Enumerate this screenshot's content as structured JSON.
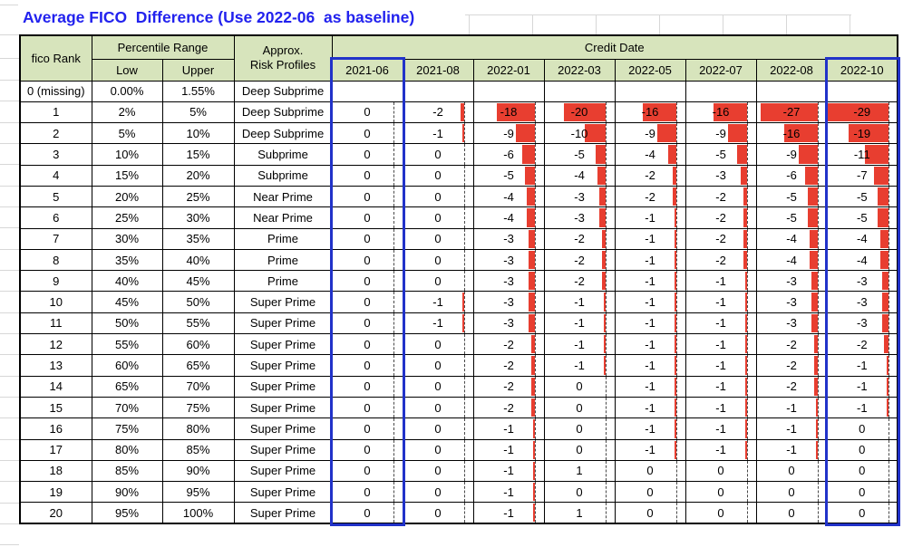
{
  "title": "Average FICO  Difference (Use 2022-06  as baseline)",
  "colors": {
    "title_blue": "#2222EE",
    "header_green": "#D7E4BC",
    "bar_red": "#E83E30",
    "highlight_blue": "#2132C9",
    "gridline_gray": "#D7D7D7",
    "cell_border": "#000000"
  },
  "chart_data": {
    "type": "table",
    "title": "Average FICO  Difference (Use 2022-06  as baseline)",
    "baseline_column": "2022-06",
    "header": {
      "rank": "fico Rank",
      "percentile_group": "Percentile Range",
      "low": "Low",
      "upper": "Upper",
      "risk_line1": "Approx.",
      "risk_line2": "Risk Profiles",
      "credit_date_group": "Credit Date",
      "date_columns": [
        "2021-06",
        "2021-08",
        "2022-01",
        "2022-03",
        "2022-05",
        "2022-07",
        "2022-08",
        "2022-10"
      ]
    },
    "highlighted_date_columns": [
      "2021-06",
      "2022-10"
    ],
    "databar": {
      "color": "#E83E30",
      "scale_min": -29,
      "scale_max": 1,
      "axis_position_pct": 88,
      "bars_for_negative_only": true
    },
    "rows": [
      {
        "rank": "0 (missing)",
        "low": "0.00%",
        "upper": "1.55%",
        "risk": "Deep Subprime",
        "values": [
          null,
          null,
          null,
          null,
          null,
          null,
          null,
          null
        ]
      },
      {
        "rank": "1",
        "low": "2%",
        "upper": "5%",
        "risk": "Deep Subprime",
        "values": [
          0,
          -2,
          -18,
          -20,
          -16,
          -16,
          -27,
          -29
        ]
      },
      {
        "rank": "2",
        "low": "5%",
        "upper": "10%",
        "risk": "Deep Subprime",
        "values": [
          0,
          -1,
          -9,
          -10,
          -9,
          -9,
          -16,
          -19
        ]
      },
      {
        "rank": "3",
        "low": "10%",
        "upper": "15%",
        "risk": "Subprime",
        "values": [
          0,
          0,
          -6,
          -5,
          -4,
          -5,
          -9,
          -11
        ]
      },
      {
        "rank": "4",
        "low": "15%",
        "upper": "20%",
        "risk": "Subprime",
        "values": [
          0,
          0,
          -5,
          -4,
          -2,
          -3,
          -6,
          -7
        ]
      },
      {
        "rank": "5",
        "low": "20%",
        "upper": "25%",
        "risk": "Near Prime",
        "values": [
          0,
          0,
          -4,
          -3,
          -2,
          -2,
          -5,
          -5
        ]
      },
      {
        "rank": "6",
        "low": "25%",
        "upper": "30%",
        "risk": "Near Prime",
        "values": [
          0,
          0,
          -4,
          -3,
          -1,
          -2,
          -5,
          -5
        ]
      },
      {
        "rank": "7",
        "low": "30%",
        "upper": "35%",
        "risk": "Prime",
        "values": [
          0,
          0,
          -3,
          -2,
          -1,
          -2,
          -4,
          -4
        ]
      },
      {
        "rank": "8",
        "low": "35%",
        "upper": "40%",
        "risk": "Prime",
        "values": [
          0,
          0,
          -3,
          -2,
          -1,
          -2,
          -4,
          -4
        ]
      },
      {
        "rank": "9",
        "low": "40%",
        "upper": "45%",
        "risk": "Prime",
        "values": [
          0,
          0,
          -3,
          -2,
          -1,
          -1,
          -3,
          -3
        ]
      },
      {
        "rank": "10",
        "low": "45%",
        "upper": "50%",
        "risk": "Super Prime",
        "values": [
          0,
          -1,
          -3,
          -1,
          -1,
          -1,
          -3,
          -3
        ]
      },
      {
        "rank": "11",
        "low": "50%",
        "upper": "55%",
        "risk": "Super Prime",
        "values": [
          0,
          -1,
          -3,
          -1,
          -1,
          -1,
          -3,
          -3
        ]
      },
      {
        "rank": "12",
        "low": "55%",
        "upper": "60%",
        "risk": "Super Prime",
        "values": [
          0,
          0,
          -2,
          -1,
          -1,
          -1,
          -2,
          -2
        ]
      },
      {
        "rank": "13",
        "low": "60%",
        "upper": "65%",
        "risk": "Super Prime",
        "values": [
          0,
          0,
          -2,
          -1,
          -1,
          -1,
          -2,
          -1
        ]
      },
      {
        "rank": "14",
        "low": "65%",
        "upper": "70%",
        "risk": "Super Prime",
        "values": [
          0,
          0,
          -2,
          0,
          -1,
          -1,
          -2,
          -1
        ]
      },
      {
        "rank": "15",
        "low": "70%",
        "upper": "75%",
        "risk": "Super Prime",
        "values": [
          0,
          0,
          -2,
          0,
          -1,
          -1,
          -1,
          -1
        ]
      },
      {
        "rank": "16",
        "low": "75%",
        "upper": "80%",
        "risk": "Super Prime",
        "values": [
          0,
          0,
          -1,
          0,
          -1,
          -1,
          -1,
          0
        ]
      },
      {
        "rank": "17",
        "low": "80%",
        "upper": "85%",
        "risk": "Super Prime",
        "values": [
          0,
          0,
          -1,
          0,
          -1,
          -1,
          -1,
          0
        ]
      },
      {
        "rank": "18",
        "low": "85%",
        "upper": "90%",
        "risk": "Super Prime",
        "values": [
          0,
          0,
          -1,
          1,
          0,
          0,
          0,
          0
        ]
      },
      {
        "rank": "19",
        "low": "90%",
        "upper": "95%",
        "risk": "Super Prime",
        "values": [
          0,
          0,
          -1,
          0,
          0,
          0,
          0,
          0
        ]
      },
      {
        "rank": "20",
        "low": "95%",
        "upper": "100%",
        "risk": "Super Prime",
        "values": [
          0,
          0,
          -1,
          1,
          0,
          0,
          0,
          0
        ]
      }
    ]
  }
}
